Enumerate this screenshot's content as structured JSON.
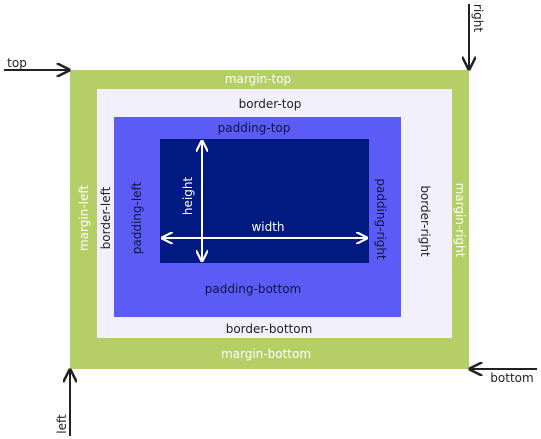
{
  "colors": {
    "margin": "#b5cf67",
    "border": "#f3f0fd",
    "padding": "#5b5cf6",
    "content": "#001a82",
    "arrow": "#222222",
    "inner_arrow": "#ffffff"
  },
  "labels": {
    "margin_top": "margin-top",
    "margin_bottom": "margin-bottom",
    "margin_left": "margin-left",
    "margin_right": "margin-right",
    "border_top": "border-top",
    "border_bottom": "border-bottom",
    "border_left": "border-left",
    "border_right": "border-right",
    "padding_top": "padding-top",
    "padding_bottom": "padding-bottom",
    "padding_left": "padding-left",
    "padding_right": "padding-right",
    "width": "width",
    "height": "height",
    "top": "top",
    "right": "right",
    "bottom": "bottom",
    "left": "left"
  }
}
